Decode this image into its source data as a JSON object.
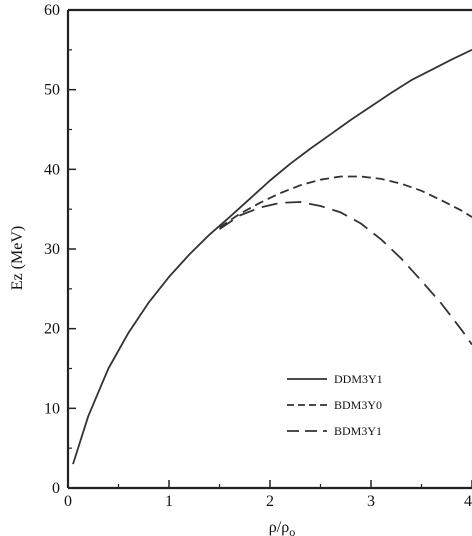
{
  "chart_data": {
    "type": "line",
    "xlabel": "ρ/ρ",
    "xlabel_sub": "o",
    "ylabel": "Ez (MeV)",
    "xlim": [
      0,
      4
    ],
    "ylim": [
      0,
      60
    ],
    "x_ticks": [
      "0",
      "1",
      "2",
      "3",
      "4"
    ],
    "y_ticks": [
      "0",
      "10",
      "20",
      "30",
      "40",
      "50",
      "60"
    ],
    "grid": false,
    "legend_position": "lower-right",
    "series": [
      {
        "name": "DDM3Y1",
        "style": "solid",
        "x": [
          0.05,
          0.2,
          0.4,
          0.6,
          0.8,
          1.0,
          1.2,
          1.4,
          1.6,
          1.8,
          2.0,
          2.2,
          2.4,
          2.6,
          2.8,
          3.0,
          3.2,
          3.4,
          3.6,
          3.8,
          4.0
        ],
        "y": [
          3.0,
          9.0,
          15.0,
          19.5,
          23.3,
          26.5,
          29.3,
          31.8,
          34.0,
          36.3,
          38.6,
          40.7,
          42.6,
          44.4,
          46.2,
          47.9,
          49.6,
          51.2,
          52.5,
          53.8,
          55.0
        ]
      },
      {
        "name": "BDM3Y0",
        "style": "dashed",
        "x": [
          1.5,
          1.7,
          1.9,
          2.1,
          2.3,
          2.5,
          2.7,
          2.9,
          3.1,
          3.3,
          3.5,
          3.7,
          3.9,
          4.0
        ],
        "y": [
          32.7,
          34.4,
          35.8,
          37.0,
          38.0,
          38.7,
          39.1,
          39.1,
          38.8,
          38.2,
          37.3,
          36.1,
          34.8,
          34.0
        ]
      },
      {
        "name": "BDM3Y1",
        "style": "longdash",
        "x": [
          1.5,
          1.7,
          1.9,
          2.1,
          2.3,
          2.5,
          2.7,
          2.9,
          3.1,
          3.3,
          3.5,
          3.7,
          3.9,
          4.0
        ],
        "y": [
          32.5,
          34.2,
          35.2,
          35.8,
          35.9,
          35.4,
          34.6,
          33.2,
          31.2,
          28.8,
          26.0,
          23.1,
          19.8,
          18.0
        ]
      }
    ]
  }
}
